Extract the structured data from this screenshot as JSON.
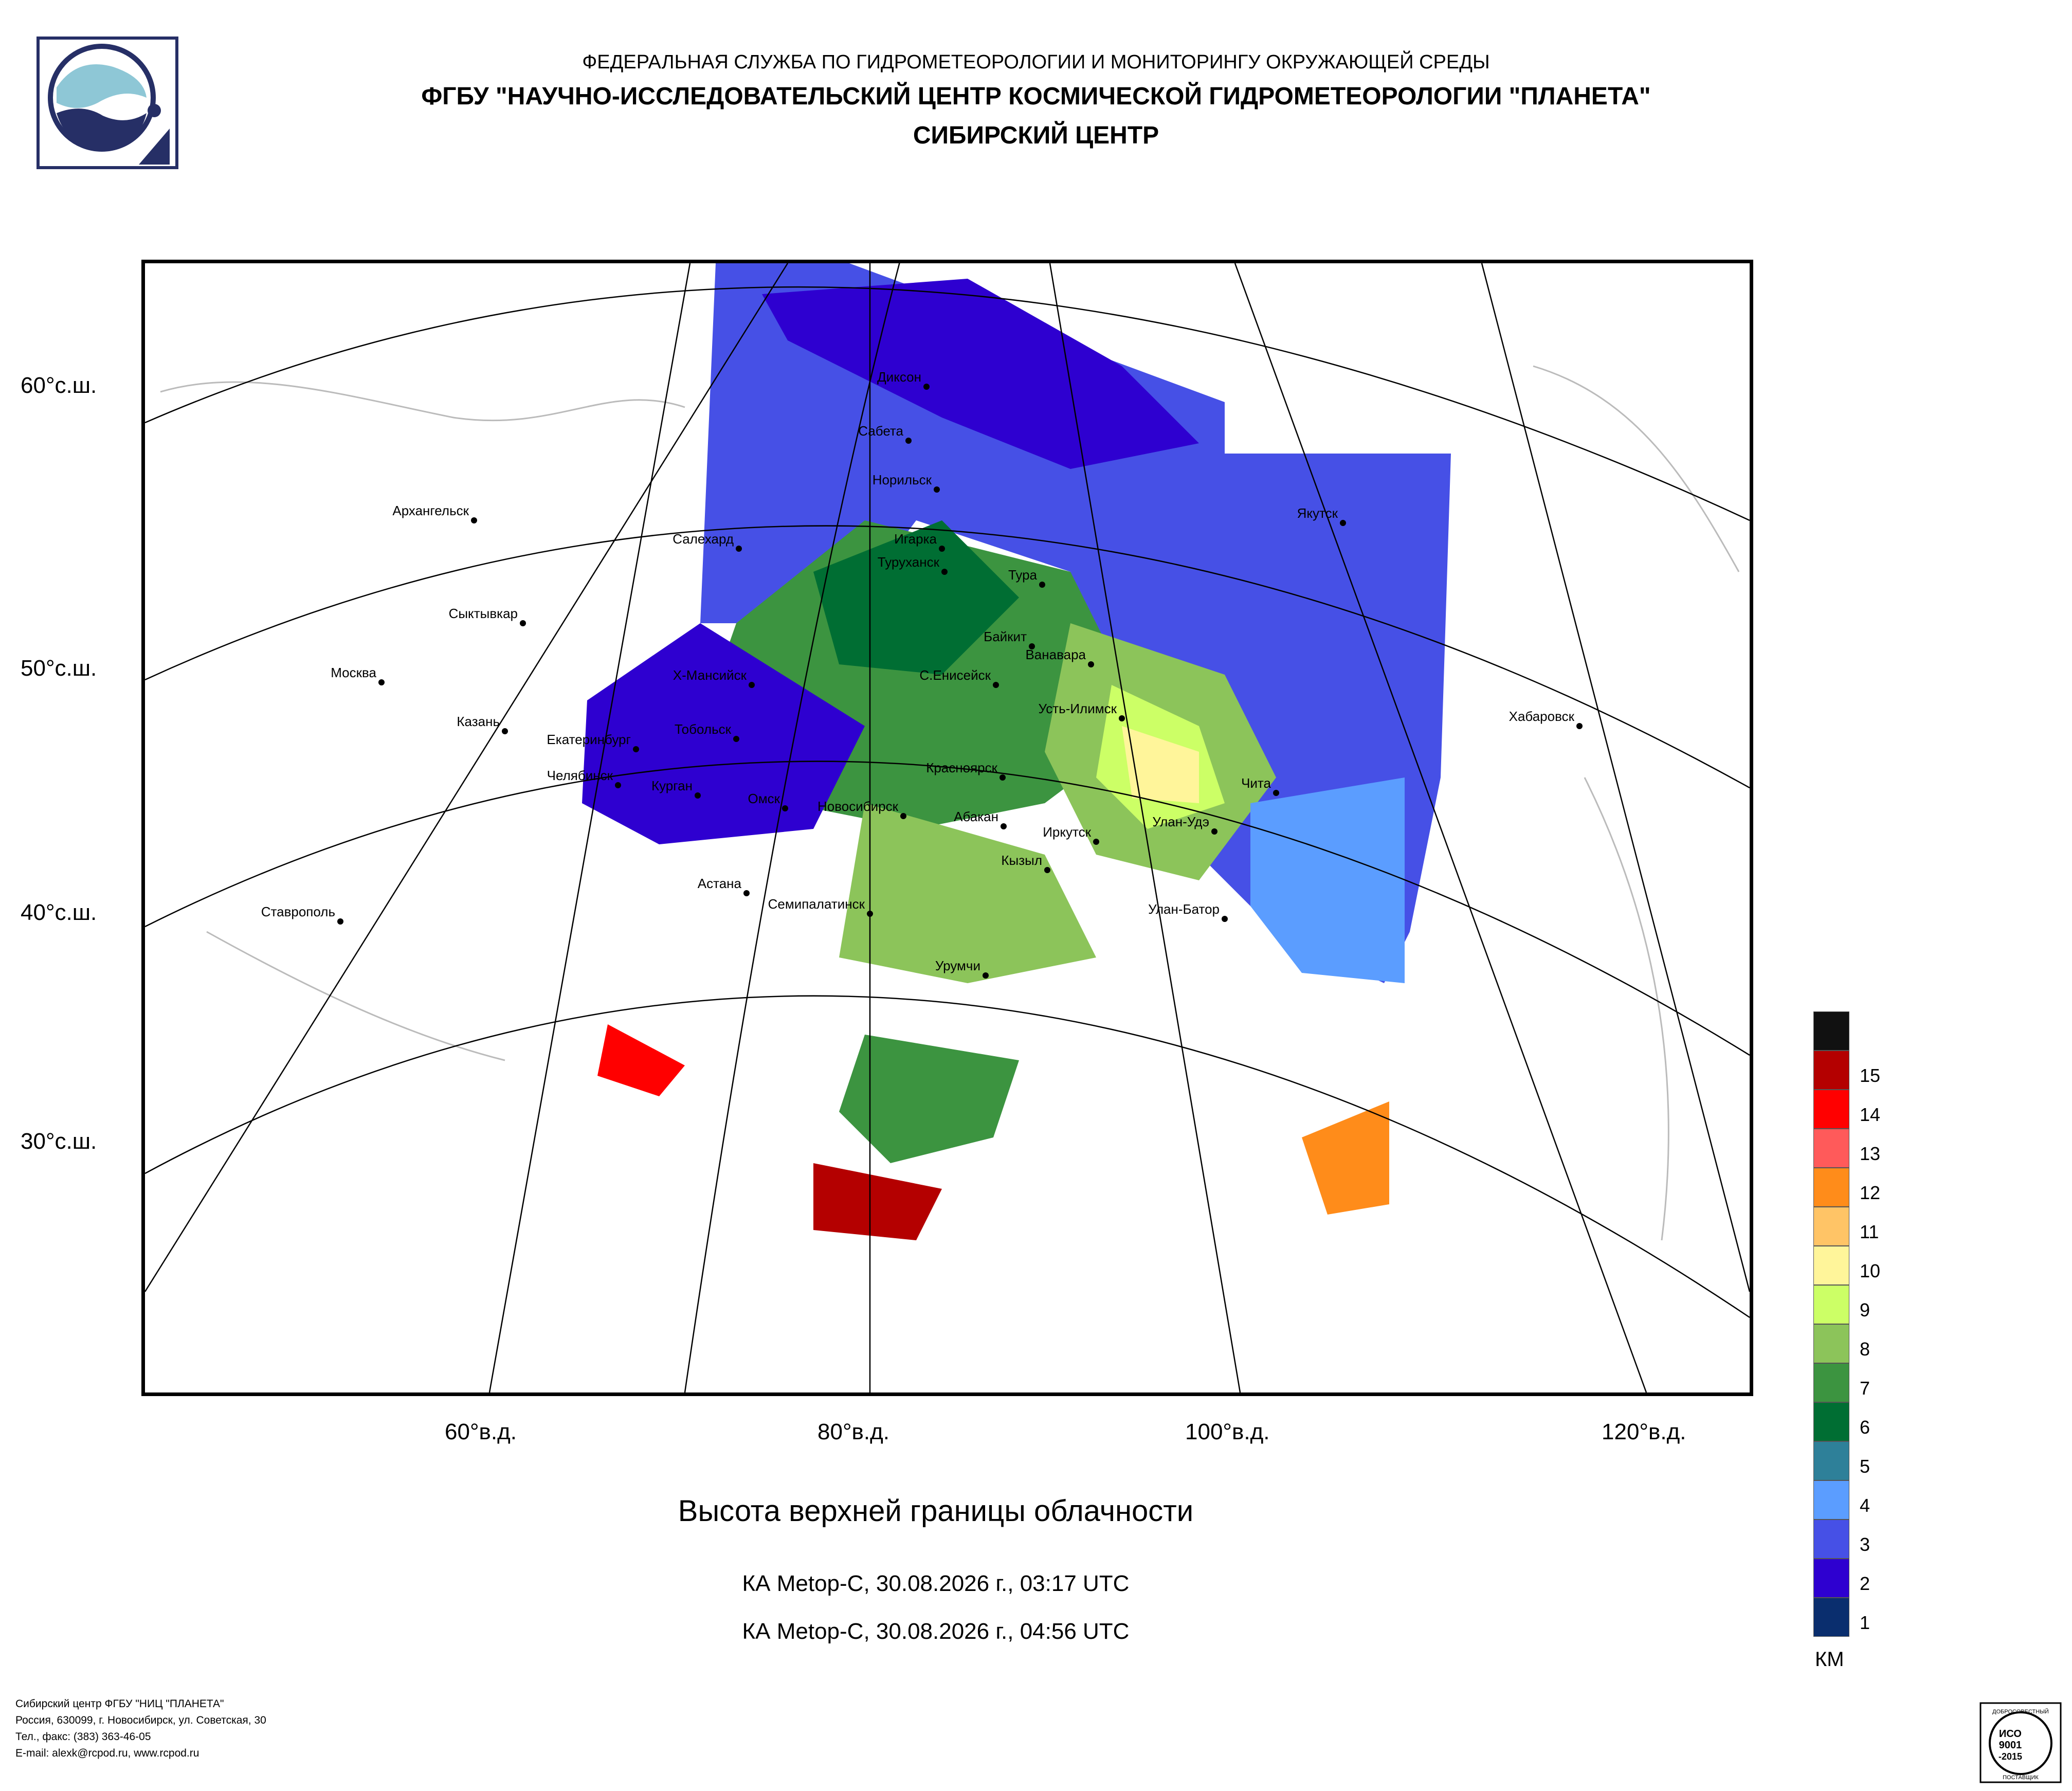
{
  "header": {
    "agency": "ФЕДЕРАЛЬНАЯ СЛУЖБА ПО ГИДРОМЕТЕОРОЛОГИИ И МОНИТОРИНГУ ОКРУЖАЮЩЕЙ СРЕДЫ",
    "institute": "ФГБУ \"НАУЧНО-ИССЛЕДОВАТЕЛЬСКИЙ ЦЕНТР КОСМИЧЕСКОЙ ГИДРОМЕТЕОРОЛОГИИ \"ПЛАНЕТА\"",
    "center": "СИБИРСКИЙ ЦЕНТР"
  },
  "logo": {
    "name": "planeta-logo",
    "color": "#262f66",
    "accent": "#8ec7d6"
  },
  "map": {
    "lat_labels": [
      "60°с.ш.",
      "50°с.ш.",
      "40°с.ш.",
      "30°с.ш."
    ],
    "lon_labels": [
      "60°в.д.",
      "80°в.д.",
      "100°в.д.",
      "120°в.д."
    ],
    "cities": [
      "Диксон",
      "Сабета",
      "Норильск",
      "Архангельск",
      "Якутск",
      "Салехард",
      "Игарка",
      "Туруханск",
      "Тура",
      "Сыктывкар",
      "Байкит",
      "Ванавара",
      "Москва",
      "Х-Мансийск",
      "С.Енисейск",
      "Усть-Илимск",
      "Хабаровск",
      "Казань",
      "Тобольск",
      "Екатеринбург",
      "Красноярск",
      "Чита",
      "Челябинск",
      "Курган",
      "Омск",
      "Новосибирск",
      "Абакан",
      "Улан-Удэ",
      "Иркутск",
      "Кызыл",
      "Ставрополь",
      "Астана",
      "Семипалатинск",
      "Улан-Батор",
      "Урумчи"
    ]
  },
  "title": "Высота верхней границы облачности",
  "passes": [
    "КА Metop-C, 30.08.2026 г., 03:17 UTC",
    "КА Metop-C, 30.08.2026 г., 04:56 UTC"
  ],
  "legend": {
    "unit": "КМ",
    "classes": [
      {
        "label": "",
        "color": "#111111"
      },
      {
        "label": "15",
        "color": "#b40000"
      },
      {
        "label": "14",
        "color": "#ff0000"
      },
      {
        "label": "13",
        "color": "#ff5a5a"
      },
      {
        "label": "12",
        "color": "#ff8c1a"
      },
      {
        "label": "11",
        "color": "#ffc466"
      },
      {
        "label": "10",
        "color": "#fff59a"
      },
      {
        "label": "9",
        "color": "#ccff66"
      },
      {
        "label": "8",
        "color": "#8cc45a"
      },
      {
        "label": "7",
        "color": "#3c9440"
      },
      {
        "label": "6",
        "color": "#006e33"
      },
      {
        "label": "5",
        "color": "#2e8099"
      },
      {
        "label": "4",
        "color": "#5b9dff"
      },
      {
        "label": "3",
        "color": "#4650e6"
      },
      {
        "label": "2",
        "color": "#2e00d0"
      },
      {
        "label": "1",
        "color": "#0a2e6e"
      }
    ]
  },
  "footer": {
    "lines": [
      "Сибирский центр ФГБУ \"НИЦ \"ПЛАНЕТА\"",
      "Россия, 630099, г. Новосибирск, ул. Советская, 30",
      "Тел., факс: (383) 363-46-05",
      "E-mail: alexk@rcpod.ru, www.rcpod.ru"
    ]
  },
  "certificate": {
    "top": "ДОБРОСОВЕСТНЫЙ",
    "mid1": "ИСО",
    "mid2": "9001",
    "mid3": "-2015",
    "bottom": "ПОСТАВЩИК"
  }
}
